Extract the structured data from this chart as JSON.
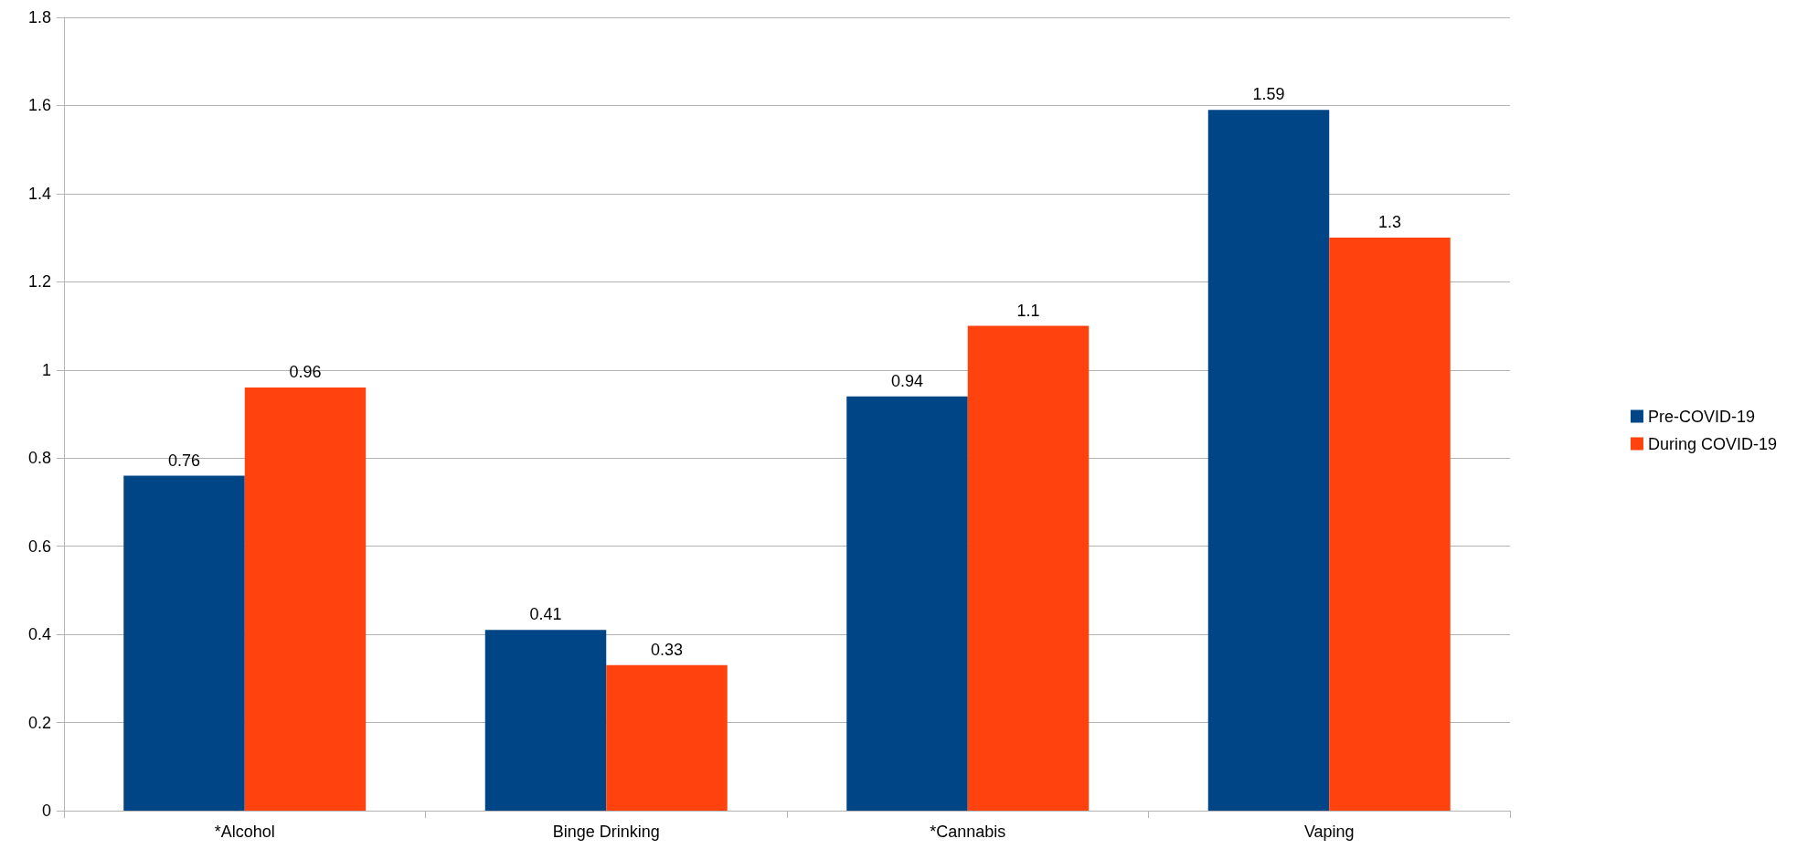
{
  "chart_data": {
    "type": "bar",
    "categories": [
      "*Alcohol",
      "Binge Drinking",
      "*Cannabis",
      "Vaping"
    ],
    "series": [
      {
        "name": "Pre-COVID-19",
        "color": "#004586",
        "values": [
          0.76,
          0.41,
          0.94,
          1.59
        ]
      },
      {
        "name": "During COVID-19",
        "color": "#ff420e",
        "values": [
          0.96,
          0.33,
          1.1,
          1.3
        ]
      }
    ],
    "ylim": [
      0,
      1.8
    ],
    "yticks": [
      0,
      0.2,
      0.4,
      0.6,
      0.8,
      1,
      1.2,
      1.4,
      1.6,
      1.8
    ],
    "grid": "y",
    "legend": "right",
    "data_labels": true
  }
}
